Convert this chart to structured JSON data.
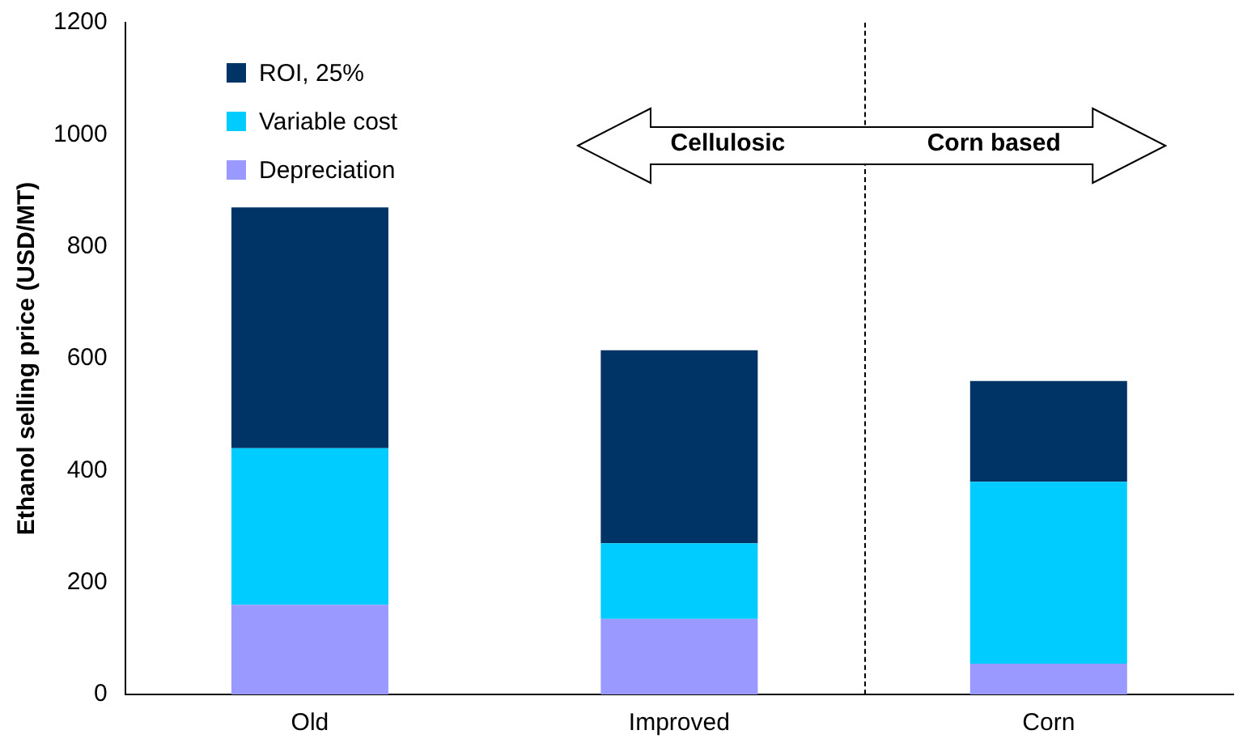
{
  "chart_data": {
    "type": "bar",
    "stacked": true,
    "ylabel": "Ethanol selling price (USD/MT)",
    "categories": [
      "Old",
      "Improved",
      "Corn"
    ],
    "series": [
      {
        "name": "Depreciation",
        "color": "#9999ff",
        "values": [
          160,
          135,
          55
        ]
      },
      {
        "name": "Variable cost",
        "color": "#00ccff",
        "values": [
          280,
          135,
          325
        ]
      },
      {
        "name": "ROI, 25%",
        "color": "#003366",
        "values": [
          430,
          345,
          180
        ]
      }
    ],
    "ylim": [
      0,
      1200
    ],
    "yticks": [
      0,
      200,
      400,
      600,
      800,
      1000,
      1200
    ],
    "grid": false,
    "legend": "top left",
    "annotations": [
      "Cellulosic",
      "Corn based"
    ]
  }
}
